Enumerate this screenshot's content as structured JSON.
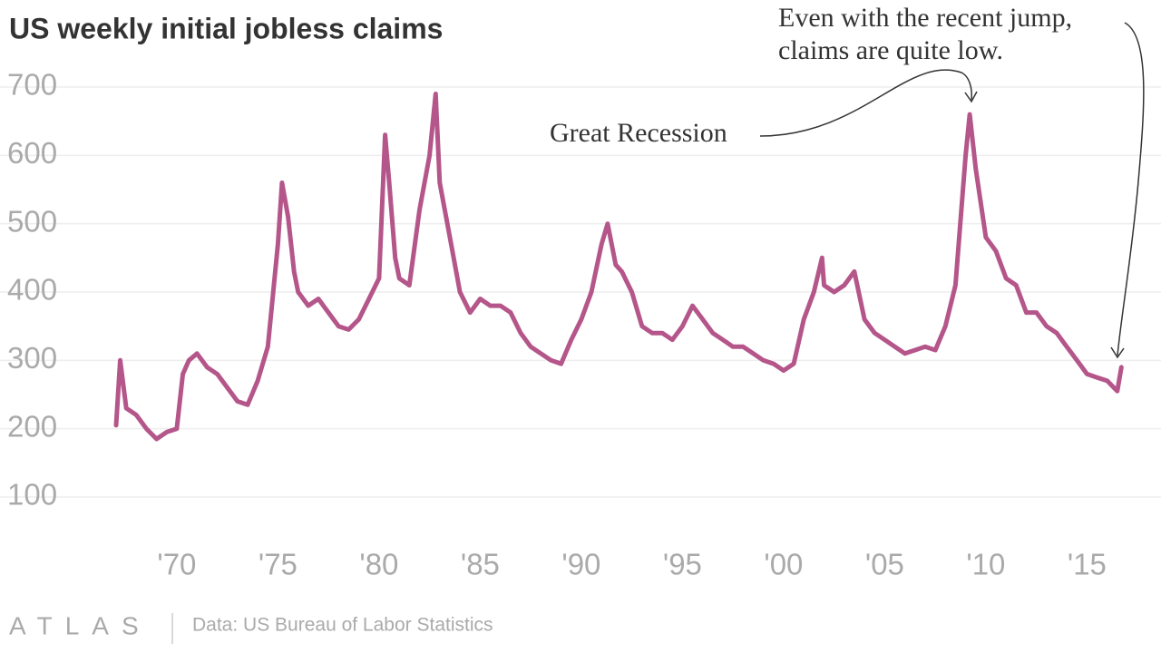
{
  "chart_data": {
    "type": "line",
    "title": "US weekly initial jobless claims",
    "source": "Data: US Bureau of Labor Statistics",
    "brand": "ATLAS",
    "annotations": [
      {
        "lines": [
          "Great Recession"
        ]
      },
      {
        "lines": [
          "Even with the recent jump,",
          "claims are quite low."
        ]
      }
    ],
    "color": "#b5568a",
    "grid": true,
    "xlim": [
      1967,
      2017
    ],
    "ylim": [
      100,
      700
    ],
    "yticks": [
      100,
      200,
      300,
      400,
      500,
      600,
      700
    ],
    "xticks": [
      {
        "value": 1970,
        "label": "'70"
      },
      {
        "value": 1975,
        "label": "'75"
      },
      {
        "value": 1980,
        "label": "'80"
      },
      {
        "value": 1985,
        "label": "'85"
      },
      {
        "value": 1990,
        "label": "'90"
      },
      {
        "value": 1995,
        "label": "'95"
      },
      {
        "value": 2000,
        "label": "'00"
      },
      {
        "value": 2005,
        "label": "'05"
      },
      {
        "value": 2010,
        "label": "'10"
      },
      {
        "value": 2015,
        "label": "'15"
      }
    ],
    "x": [
      1967.0,
      1967.2,
      1967.5,
      1968,
      1968.5,
      1969,
      1969.5,
      1970,
      1970.3,
      1970.6,
      1971,
      1971.5,
      1972,
      1972.5,
      1973,
      1973.5,
      1974,
      1974.5,
      1975,
      1975.2,
      1975.5,
      1975.8,
      1976,
      1976.5,
      1977,
      1977.5,
      1978,
      1978.5,
      1979,
      1979.5,
      1980,
      1980.3,
      1980.5,
      1980.8,
      1981,
      1981.5,
      1982,
      1982.5,
      1982.8,
      1983,
      1983.5,
      1984,
      1984.5,
      1985,
      1985.5,
      1986,
      1986.5,
      1987,
      1987.5,
      1988,
      1988.5,
      1989,
      1989.5,
      1990,
      1990.5,
      1991,
      1991.3,
      1991.7,
      1992,
      1992.5,
      1993,
      1993.5,
      1994,
      1994.5,
      1995,
      1995.5,
      1996,
      1996.5,
      1997,
      1997.5,
      1998,
      1998.5,
      1999,
      1999.5,
      2000,
      2000.5,
      2001,
      2001.5,
      2001.9,
      2002,
      2002.5,
      2003,
      2003.5,
      2004,
      2004.5,
      2005,
      2005.5,
      2006,
      2006.5,
      2007,
      2007.5,
      2008,
      2008.5,
      2009,
      2009.2,
      2009.5,
      2010,
      2010.5,
      2011,
      2011.5,
      2012,
      2012.5,
      2013,
      2013.5,
      2014,
      2014.5,
      2015,
      2015.5,
      2016,
      2016.5,
      2016.7
    ],
    "values": [
      205,
      300,
      230,
      220,
      200,
      185,
      195,
      200,
      280,
      300,
      310,
      290,
      280,
      260,
      240,
      235,
      270,
      320,
      470,
      560,
      510,
      430,
      400,
      380,
      390,
      370,
      350,
      345,
      360,
      390,
      420,
      630,
      560,
      450,
      420,
      410,
      520,
      600,
      690,
      560,
      480,
      400,
      370,
      390,
      380,
      380,
      370,
      340,
      320,
      310,
      300,
      295,
      330,
      360,
      400,
      470,
      500,
      440,
      430,
      400,
      350,
      340,
      340,
      330,
      350,
      380,
      360,
      340,
      330,
      320,
      320,
      310,
      300,
      295,
      285,
      295,
      360,
      400,
      450,
      410,
      400,
      410,
      430,
      360,
      340,
      330,
      320,
      310,
      315,
      320,
      315,
      350,
      410,
      600,
      660,
      580,
      480,
      460,
      420,
      410,
      370,
      370,
      350,
      340,
      320,
      300,
      280,
      275,
      270,
      255,
      290
    ]
  }
}
